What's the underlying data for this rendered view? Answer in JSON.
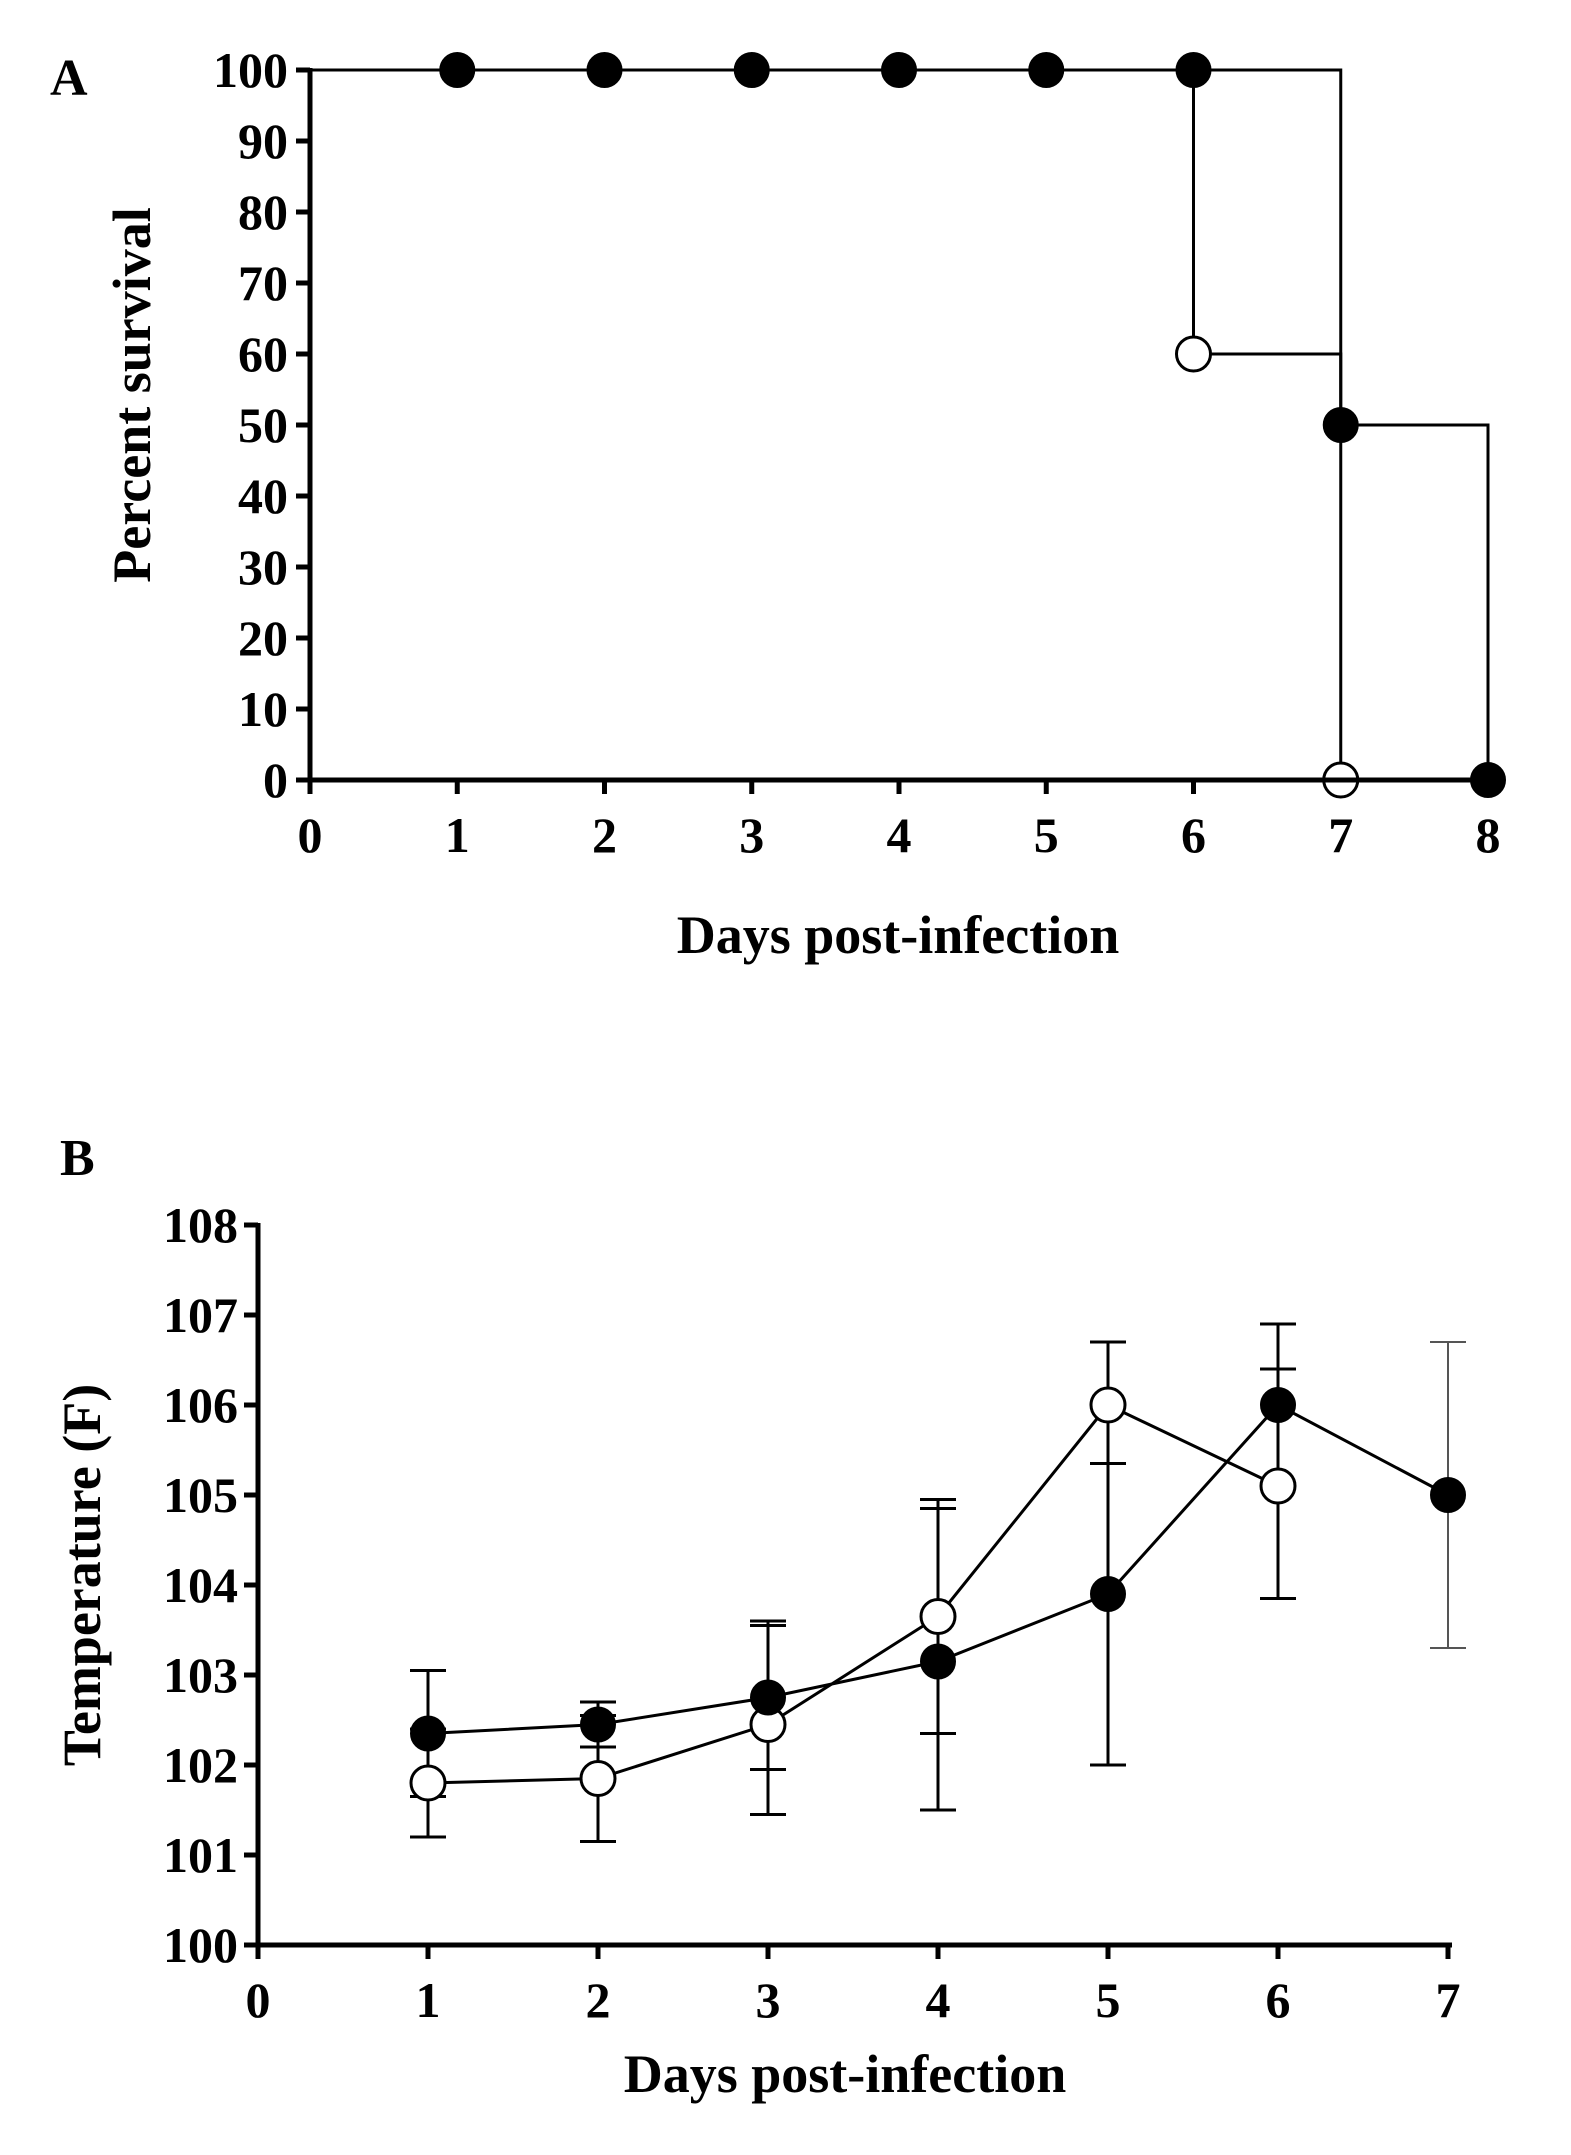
{
  "chart_data": [
    {
      "type": "line",
      "subtype": "kaplan-meier-survival",
      "panel": "A",
      "xlabel": "Days post-infection",
      "ylabel": "Percent survival",
      "xlim": [
        0,
        8
      ],
      "ylim": [
        0,
        100
      ],
      "xticks": [
        "0",
        "1",
        "2",
        "3",
        "4",
        "5",
        "6",
        "7",
        "8"
      ],
      "yticks": [
        "0",
        "10",
        "20",
        "30",
        "40",
        "50",
        "60",
        "70",
        "80",
        "90",
        "100"
      ],
      "series": [
        {
          "name": "filled",
          "marker": "filled-circle",
          "color": "#000000",
          "step_x": [
            0,
            6,
            7,
            8
          ],
          "step_y": [
            100,
            100,
            50,
            0
          ],
          "points": [
            [
              1,
              100
            ],
            [
              2,
              100
            ],
            [
              3,
              100
            ],
            [
              4,
              100
            ],
            [
              5,
              100
            ],
            [
              6,
              100
            ],
            [
              7,
              50
            ],
            [
              8,
              0
            ]
          ]
        },
        {
          "name": "open",
          "marker": "open-circle",
          "color": "#000000",
          "step_x": [
            0,
            6,
            7
          ],
          "step_y": [
            100,
            60,
            0
          ],
          "points": [
            [
              6,
              60
            ],
            [
              7,
              0
            ]
          ]
        }
      ]
    },
    {
      "type": "line",
      "panel": "B",
      "xlabel": "Days post-infection",
      "ylabel": "Temperature (F)",
      "xlim": [
        0,
        7
      ],
      "ylim": [
        100,
        108
      ],
      "xticks": [
        "0",
        "1",
        "2",
        "3",
        "4",
        "5",
        "6",
        "7"
      ],
      "yticks": [
        "100",
        "101",
        "102",
        "103",
        "104",
        "105",
        "106",
        "107",
        "108"
      ],
      "series": [
        {
          "name": "filled",
          "marker": "filled-circle",
          "color": "#000000",
          "x": [
            1,
            2,
            3,
            4,
            5,
            6,
            7
          ],
          "y": [
            102.35,
            102.45,
            102.75,
            103.15,
            103.9,
            106.0,
            105.0
          ],
          "err_low": [
            101.65,
            102.2,
            101.95,
            101.5,
            102.0,
            103.85,
            103.3
          ],
          "err_high": [
            103.05,
            102.7,
            103.55,
            104.85,
            105.35,
            106.4,
            106.7
          ]
        },
        {
          "name": "open",
          "marker": "open-circle",
          "color": "#000000",
          "x": [
            1,
            2,
            3,
            4,
            5,
            6
          ],
          "y": [
            101.8,
            101.85,
            102.45,
            103.65,
            106.0,
            105.1
          ],
          "err_low": [
            101.2,
            101.15,
            101.45,
            102.35,
            105.35,
            103.85
          ],
          "err_high": [
            102.4,
            102.55,
            103.6,
            104.95,
            106.7,
            106.9
          ]
        }
      ]
    }
  ]
}
